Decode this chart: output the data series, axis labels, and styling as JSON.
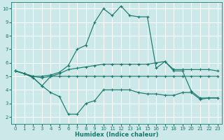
{
  "xlabel": "Humidex (Indice chaleur)",
  "xlim": [
    -0.5,
    23.5
  ],
  "ylim": [
    1.5,
    10.5
  ],
  "yticks": [
    2,
    3,
    4,
    5,
    6,
    7,
    8,
    9,
    10
  ],
  "xticks": [
    0,
    1,
    2,
    3,
    4,
    5,
    6,
    7,
    8,
    9,
    10,
    11,
    12,
    13,
    14,
    15,
    16,
    17,
    18,
    19,
    20,
    21,
    22,
    23
  ],
  "background_color": "#cce8e8",
  "grid_color": "#ffffff",
  "line_color": "#1a7a6e",
  "lines": [
    {
      "x": [
        0,
        1,
        2,
        3,
        4,
        5,
        6,
        7,
        8,
        9,
        10,
        11,
        12,
        13,
        14,
        15,
        16,
        17,
        18,
        19,
        20,
        21,
        22,
        23
      ],
      "y": [
        5.4,
        5.2,
        5.0,
        5.0,
        5.1,
        5.3,
        5.8,
        7.0,
        7.3,
        9.0,
        10.0,
        9.5,
        10.2,
        9.5,
        9.4,
        9.4,
        5.6,
        6.1,
        5.4,
        5.4,
        3.9,
        3.4,
        3.4,
        3.4
      ]
    },
    {
      "x": [
        0,
        1,
        2,
        3,
        4,
        5,
        6,
        7,
        8,
        9,
        10,
        11,
        12,
        13,
        14,
        15,
        16,
        17,
        18,
        19,
        20,
        21,
        22,
        23
      ],
      "y": [
        5.4,
        5.2,
        4.9,
        4.3,
        5.0,
        5.2,
        5.5,
        5.6,
        5.7,
        5.8,
        5.9,
        5.9,
        5.9,
        5.9,
        5.9,
        5.9,
        6.0,
        6.1,
        5.5,
        5.5,
        5.5,
        5.5,
        5.5,
        5.4
      ]
    },
    {
      "x": [
        0,
        1,
        2,
        3,
        4,
        5,
        6,
        7,
        8,
        9,
        10,
        11,
        12,
        13,
        14,
        15,
        16,
        17,
        18,
        19,
        20,
        21,
        22,
        23
      ],
      "y": [
        5.4,
        5.2,
        5.0,
        4.9,
        5.0,
        5.0,
        5.0,
        5.0,
        5.0,
        5.0,
        5.0,
        5.0,
        5.0,
        5.0,
        5.0,
        5.0,
        5.0,
        5.0,
        5.0,
        5.0,
        5.0,
        5.0,
        5.0,
        5.0
      ]
    },
    {
      "x": [
        0,
        1,
        2,
        3,
        4,
        5,
        6,
        7,
        8,
        9,
        10,
        11,
        12,
        13,
        14,
        15,
        16,
        17,
        18,
        19,
        20,
        21,
        22,
        23
      ],
      "y": [
        5.4,
        5.2,
        4.9,
        4.3,
        3.8,
        3.5,
        2.2,
        2.2,
        3.0,
        3.2,
        4.0,
        4.0,
        4.0,
        4.0,
        3.8,
        3.7,
        3.7,
        3.6,
        3.6,
        3.8,
        3.8,
        3.3,
        3.4,
        3.4
      ]
    }
  ]
}
